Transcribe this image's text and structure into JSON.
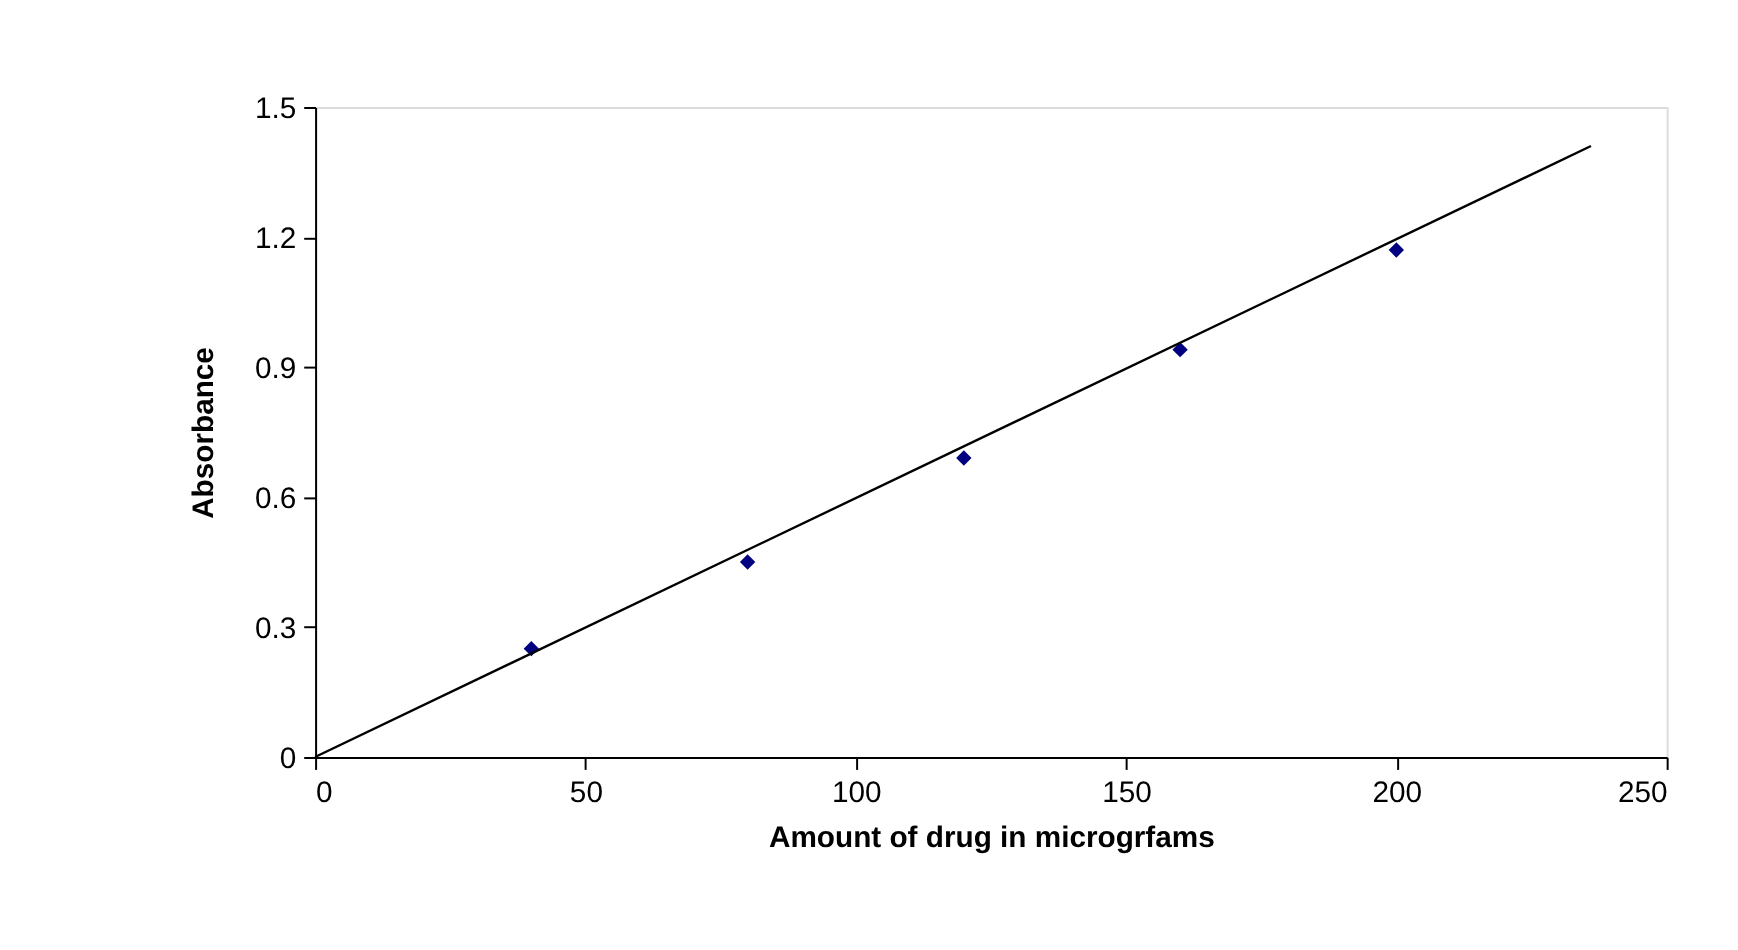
{
  "chart_data": {
    "type": "scatter",
    "xlabel": "Amount of drug in microgrfams",
    "ylabel": "Absorbance",
    "xlim": [
      0,
      250
    ],
    "xticks": [
      0,
      50,
      100,
      150,
      200,
      250
    ],
    "ylim": [
      0,
      1.5
    ],
    "yticks": [
      0,
      0.3,
      0.6,
      0.9,
      1.2,
      1.5
    ],
    "grid": false,
    "marker": "diamond",
    "series": [
      {
        "color": "#000080",
        "x": [
          40,
          80,
          120,
          160,
          200
        ],
        "values": [
          0.25,
          0.45,
          0.69,
          0.94,
          1.17
        ]
      },
      {
        "type": "line",
        "color": "#000000",
        "x": [
          0,
          236
        ],
        "values": [
          0,
          1.41
        ],
        "line_style": "solid",
        "marker": "none"
      }
    ]
  }
}
